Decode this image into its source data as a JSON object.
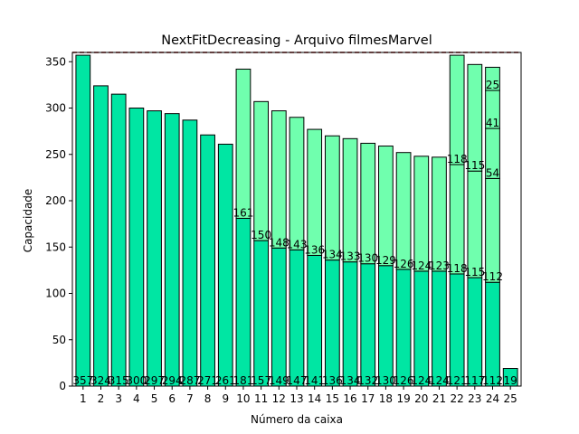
{
  "chart_data": {
    "type": "bar",
    "stacked": true,
    "title": "NextFitDecreasing - Arquivo filmesMarvel",
    "xlabel": "Número da caixa",
    "ylabel": "Capacidade",
    "ylim": [
      0,
      360
    ],
    "yticks": [
      0,
      50,
      100,
      150,
      200,
      250,
      300,
      350
    ],
    "capacity_line": 360,
    "colors": {
      "first_item": "#00e6a3",
      "other_items": "#70ffae",
      "edge": "#000000",
      "capacity_line": "#8b0000"
    },
    "categories": [
      "1",
      "2",
      "3",
      "4",
      "5",
      "6",
      "7",
      "8",
      "9",
      "10",
      "11",
      "12",
      "13",
      "14",
      "15",
      "16",
      "17",
      "18",
      "19",
      "20",
      "21",
      "22",
      "23",
      "24",
      "25"
    ],
    "bins": [
      {
        "items": [
          357
        ]
      },
      {
        "items": [
          324
        ]
      },
      {
        "items": [
          315
        ]
      },
      {
        "items": [
          300
        ]
      },
      {
        "items": [
          297
        ]
      },
      {
        "items": [
          294
        ]
      },
      {
        "items": [
          287
        ]
      },
      {
        "items": [
          271
        ]
      },
      {
        "items": [
          261
        ]
      },
      {
        "items": [
          181,
          161
        ]
      },
      {
        "items": [
          157,
          150
        ]
      },
      {
        "items": [
          149,
          148
        ]
      },
      {
        "items": [
          147,
          143
        ]
      },
      {
        "items": [
          141,
          136
        ]
      },
      {
        "items": [
          136,
          134
        ]
      },
      {
        "items": [
          134,
          133
        ]
      },
      {
        "items": [
          132,
          130
        ]
      },
      {
        "items": [
          130,
          129
        ]
      },
      {
        "items": [
          126,
          126
        ]
      },
      {
        "items": [
          124,
          124
        ]
      },
      {
        "items": [
          124,
          123
        ]
      },
      {
        "items": [
          121,
          118,
          118
        ]
      },
      {
        "items": [
          117,
          115,
          115
        ]
      },
      {
        "items": [
          112,
          112,
          54,
          41,
          25
        ]
      },
      {
        "items": [
          19
        ]
      }
    ]
  }
}
